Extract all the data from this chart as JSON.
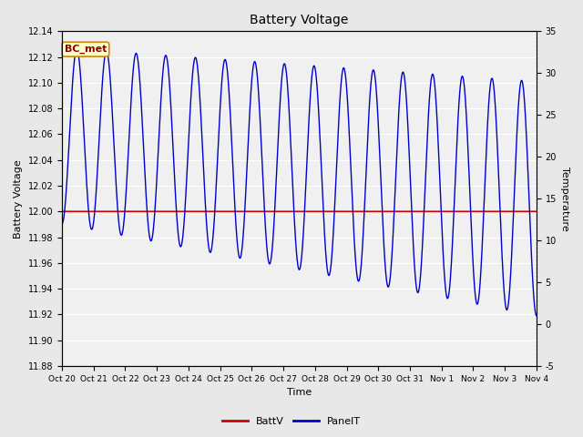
{
  "title": "Battery Voltage",
  "xlabel": "Time",
  "ylabel_left": "Battery Voltage",
  "ylabel_right": "Temperature",
  "ylim_left": [
    11.88,
    12.14
  ],
  "ylim_right": [
    -5,
    35
  ],
  "yticks_left": [
    11.88,
    11.9,
    11.92,
    11.94,
    11.96,
    11.98,
    12.0,
    12.02,
    12.04,
    12.06,
    12.08,
    12.1,
    12.12,
    12.14
  ],
  "yticks_right": [
    -5,
    0,
    5,
    10,
    15,
    20,
    25,
    30,
    35
  ],
  "xtick_labels": [
    "Oct 20",
    "Oct 21",
    "Oct 22",
    "Oct 23",
    "Oct 24",
    "Oct 25",
    "Oct 26",
    "Oct 27",
    "Oct 28",
    "Oct 29",
    "Oct 30",
    "Oct 31",
    "Nov 1",
    "Nov 2",
    "Nov 3",
    "Nov 4"
  ],
  "batt_v": 12.0,
  "annotation_text": "BC_met",
  "annotation_bg": "#ffffcc",
  "annotation_border": "#cc8800",
  "annotation_text_color": "#880000",
  "line_color_batt": "#cc0000",
  "line_color_panel": "#0000cc",
  "bg_color": "#e8e8e8",
  "plot_bg": "#f0f0f0",
  "grid_color": "#ffffff",
  "legend_labels": [
    "BattV",
    "PanelT"
  ],
  "legend_colors": [
    "#cc0000",
    "#0000cc"
  ],
  "figsize": [
    6.4,
    4.8
  ],
  "dpi": 100
}
